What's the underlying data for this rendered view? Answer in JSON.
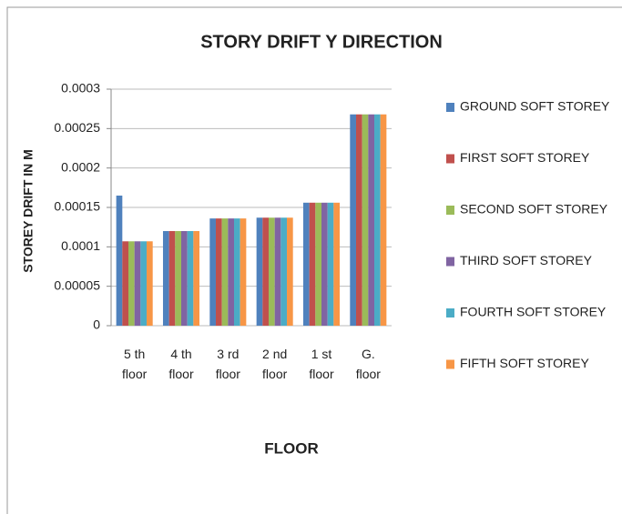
{
  "chart_data": {
    "type": "bar",
    "title": "STORY DRIFT  Y DIRECTION",
    "y_label": "STOREY DRIFT IN M",
    "x_label": "FLOOR",
    "categories": [
      "5 th floor",
      "4 th floor",
      "3 rd floor",
      "2 nd floor",
      "1 st floor",
      "G. floor"
    ],
    "series": [
      {
        "name": "GROUND  SOFT STOREY",
        "color": "#4f81bd",
        "values": [
          0.000165,
          0.00012,
          0.000136,
          0.000137,
          0.000156,
          0.000268
        ]
      },
      {
        "name": "FIRST  SOFT  STOREY",
        "color": "#c0504d",
        "values": [
          0.000107,
          0.00012,
          0.000136,
          0.000137,
          0.000156,
          0.000268
        ]
      },
      {
        "name": "SECOND  SOFT STOREY",
        "color": "#9bbb59",
        "values": [
          0.000107,
          0.00012,
          0.000136,
          0.000137,
          0.000156,
          0.000268
        ]
      },
      {
        "name": "THIRD  SOFT STOREY",
        "color": "#8064a2",
        "values": [
          0.000107,
          0.00012,
          0.000136,
          0.000137,
          0.000156,
          0.000268
        ]
      },
      {
        "name": "FOURTH  SOFT STOREY",
        "color": "#4bacc6",
        "values": [
          0.000107,
          0.00012,
          0.000136,
          0.000137,
          0.000156,
          0.000268
        ]
      },
      {
        "name": "FIFTH SOFT  STOREY",
        "color": "#f79646",
        "values": [
          0.000107,
          0.00012,
          0.000136,
          0.000137,
          0.000156,
          0.000268
        ]
      }
    ],
    "ylim": [
      0,
      0.0003
    ],
    "yticks": [
      0,
      5e-05,
      0.0001,
      0.00015,
      0.0002,
      0.00025,
      0.0003
    ],
    "grid": true,
    "legend": "right"
  }
}
